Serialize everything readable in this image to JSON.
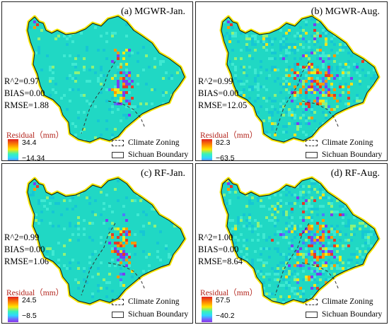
{
  "panels": [
    {
      "title": "(a)  MGWR-Jan.",
      "stats": {
        "r2": "R^2=0.97",
        "bias": "BIAS=0.00",
        "rmse": "RMSE=1.88"
      },
      "colorbar": {
        "title": "Residual（mm）",
        "max": "34.4",
        "min": "−14.34"
      },
      "legend": {
        "zoning": "Climate Zoning",
        "boundary": "Sichuan Boundary"
      },
      "variant": "jan"
    },
    {
      "title": "(b)  MGWR-Aug.",
      "stats": {
        "r2": "R^2=0.99",
        "bias": "BIAS=0.00",
        "rmse": "RMSE=12.05"
      },
      "colorbar": {
        "title": "Residual（mm）",
        "max": "82.3",
        "min": "−63.5"
      },
      "legend": {
        "zoning": "Climate Zoning",
        "boundary": "Sichuan Boundary"
      },
      "variant": "aug"
    },
    {
      "title": "(c)  RF-Jan.",
      "stats": {
        "r2": "R^2=0.99",
        "bias": "BIAS=0.00",
        "rmse": "RMSE=1.06"
      },
      "colorbar": {
        "title": "Residual（mm）",
        "max": "24.5",
        "min": "−8.5"
      },
      "legend": {
        "zoning": "Climate Zoning",
        "boundary": "Sichuan Boundary"
      },
      "variant": "jan"
    },
    {
      "title": "(d)  RF-Aug.",
      "stats": {
        "r2": "R^2=1.00",
        "bias": "BIAS=0.00",
        "rmse": "RMSE=8.64"
      },
      "colorbar": {
        "title": "Residual（mm）",
        "max": "57.5",
        "min": "−40.2"
      },
      "legend": {
        "zoning": "Climate Zoning",
        "boundary": "Sichuan Boundary"
      },
      "variant": "aug"
    }
  ],
  "colors": {
    "base": "#20d8c4",
    "boundary_glow": "#f2e600",
    "boundary": "#111111"
  }
}
